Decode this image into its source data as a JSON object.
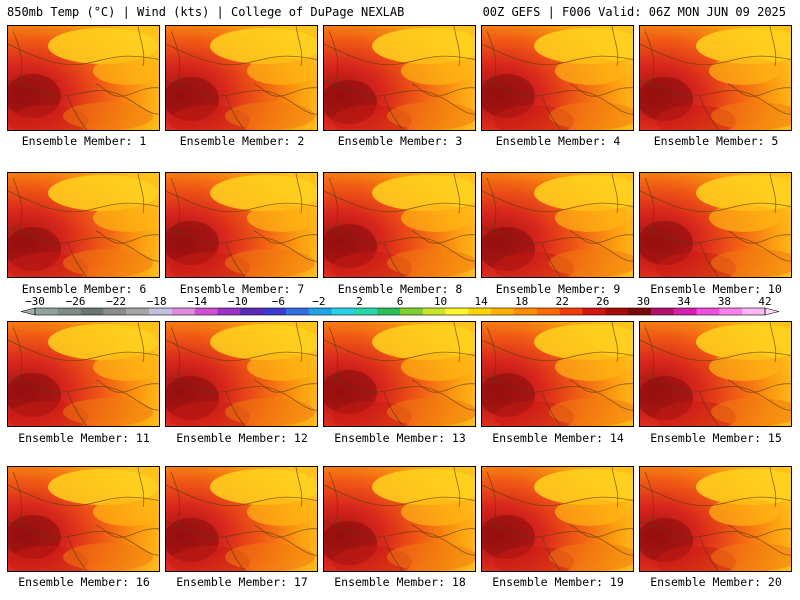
{
  "header": {
    "left": "850mb Temp (°C) | Wind (kts) | College of DuPage NEXLAB",
    "right": "00Z GEFS | F006 Valid: 06Z MON JUN 09 2025"
  },
  "panels": [
    {
      "label": "Ensemble Member: 1"
    },
    {
      "label": "Ensemble Member: 2"
    },
    {
      "label": "Ensemble Member: 3"
    },
    {
      "label": "Ensemble Member: 4"
    },
    {
      "label": "Ensemble Member: 5"
    },
    {
      "label": "Ensemble Member: 6"
    },
    {
      "label": "Ensemble Member: 7"
    },
    {
      "label": "Ensemble Member: 8"
    },
    {
      "label": "Ensemble Member: 9"
    },
    {
      "label": "Ensemble Member: 10"
    },
    {
      "label": "Ensemble Member: 11"
    },
    {
      "label": "Ensemble Member: 12"
    },
    {
      "label": "Ensemble Member: 13"
    },
    {
      "label": "Ensemble Member: 14"
    },
    {
      "label": "Ensemble Member: 15"
    },
    {
      "label": "Ensemble Member: 16"
    },
    {
      "label": "Ensemble Member: 17"
    },
    {
      "label": "Ensemble Member: 18"
    },
    {
      "label": "Ensemble Member: 19"
    },
    {
      "label": "Ensemble Member: 20"
    }
  ],
  "colorbar": {
    "labels": [
      "−30",
      "−26",
      "−22",
      "−18",
      "−14",
      "−10",
      "−6",
      "−2",
      "2",
      "6",
      "10",
      "14",
      "18",
      "22",
      "26",
      "30",
      "34",
      "38",
      "42"
    ],
    "colors": [
      "#8fa39a",
      "#7d8d84",
      "#6b7570",
      "#8c8c8c",
      "#a6a6a6",
      "#c3bfe0",
      "#e08de0",
      "#d14fd6",
      "#9b33c7",
      "#5a2ab8",
      "#3b3bd4",
      "#2f6fe0",
      "#1fa3e8",
      "#26d0e6",
      "#27d9a8",
      "#2bbf5a",
      "#7fd12f",
      "#c9e62a",
      "#fff52a",
      "#ffd400",
      "#ffb000",
      "#ff8c00",
      "#ff6a00",
      "#f23a0a",
      "#d4140f",
      "#a80a0a",
      "#7a0808",
      "#b0106e",
      "#d61fae",
      "#f04ee0",
      "#ff7fef",
      "#ffb8f5"
    ]
  }
}
